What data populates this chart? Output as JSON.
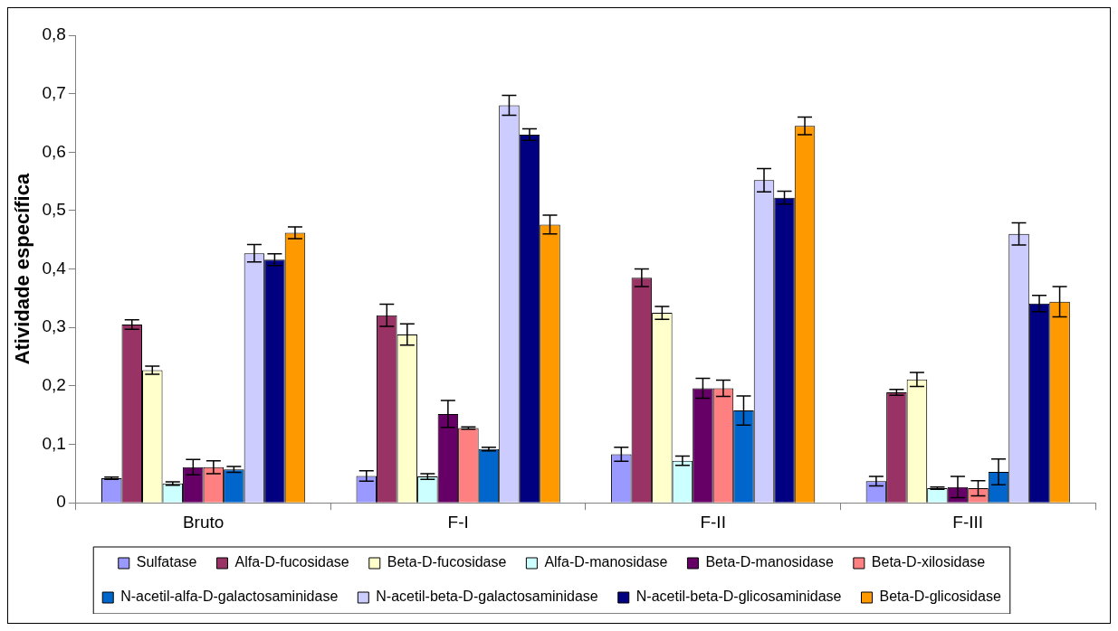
{
  "chart_data": {
    "type": "bar",
    "ylabel": "Atividade específica",
    "categories": [
      "Bruto",
      "F-I",
      "F-II",
      "F-III"
    ],
    "ylim": [
      0,
      0.8
    ],
    "yticks": [
      0,
      {
        "value": 0.1,
        "label": "0,1"
      },
      {
        "value": 0.2,
        "label": "0,2"
      },
      {
        "value": 0.3,
        "label": "0,3"
      },
      {
        "value": 0.4,
        "label": "0,4"
      },
      {
        "value": 0.5,
        "label": "0,5"
      },
      {
        "value": 0.6,
        "label": "0,6"
      },
      {
        "value": 0.7,
        "label": "0,7"
      },
      {
        "value": 0.8,
        "label": "0,8"
      }
    ],
    "grid": false,
    "legend": "bottom",
    "series": [
      {
        "name": "Sulfatase",
        "color": "#9999ff",
        "values": [
          0.042,
          0.046,
          0.083,
          0.037
        ],
        "errors": [
          0.002,
          0.009,
          0.012,
          0.008
        ]
      },
      {
        "name": "Alfa-D-fucosidase",
        "color": "#993366",
        "values": [
          0.305,
          0.321,
          0.385,
          0.189
        ],
        "errors": [
          0.008,
          0.019,
          0.015,
          0.005
        ]
      },
      {
        "name": "Beta-D-fucosidase",
        "color": "#ffffcc",
        "values": [
          0.227,
          0.288,
          0.325,
          0.211
        ],
        "errors": [
          0.007,
          0.018,
          0.011,
          0.012
        ]
      },
      {
        "name": "Alfa-D-manosidase",
        "color": "#ccffff",
        "values": [
          0.033,
          0.045,
          0.072,
          0.025
        ],
        "errors": [
          0.003,
          0.005,
          0.008,
          0.002
        ]
      },
      {
        "name": "Beta-D-manosidase",
        "color": "#660066",
        "values": [
          0.061,
          0.152,
          0.196,
          0.027
        ],
        "errors": [
          0.013,
          0.023,
          0.017,
          0.018
        ]
      },
      {
        "name": "Beta-D-xilosidase",
        "color": "#ff8080",
        "values": [
          0.061,
          0.128,
          0.196,
          0.025
        ],
        "errors": [
          0.011,
          0.002,
          0.014,
          0.013
        ]
      },
      {
        "name": "N-acetil-alfa-D-galactosaminidase",
        "color": "#0066cc",
        "values": [
          0.057,
          0.092,
          0.158,
          0.053
        ],
        "errors": [
          0.005,
          0.003,
          0.025,
          0.022
        ]
      },
      {
        "name": "N-acetil-beta-D-galactosaminidase",
        "color": "#ccccff",
        "values": [
          0.427,
          0.68,
          0.552,
          0.46
        ],
        "errors": [
          0.015,
          0.017,
          0.02,
          0.019
        ]
      },
      {
        "name": "N-acetil-beta-D-glicosaminidase",
        "color": "#000080",
        "values": [
          0.416,
          0.63,
          0.522,
          0.341
        ],
        "errors": [
          0.01,
          0.01,
          0.011,
          0.014
        ]
      },
      {
        "name": "Beta-D-glicosidase",
        "color": "#ff9900",
        "values": [
          0.462,
          0.476,
          0.645,
          0.344
        ],
        "errors": [
          0.01,
          0.016,
          0.015,
          0.026
        ]
      }
    ]
  }
}
